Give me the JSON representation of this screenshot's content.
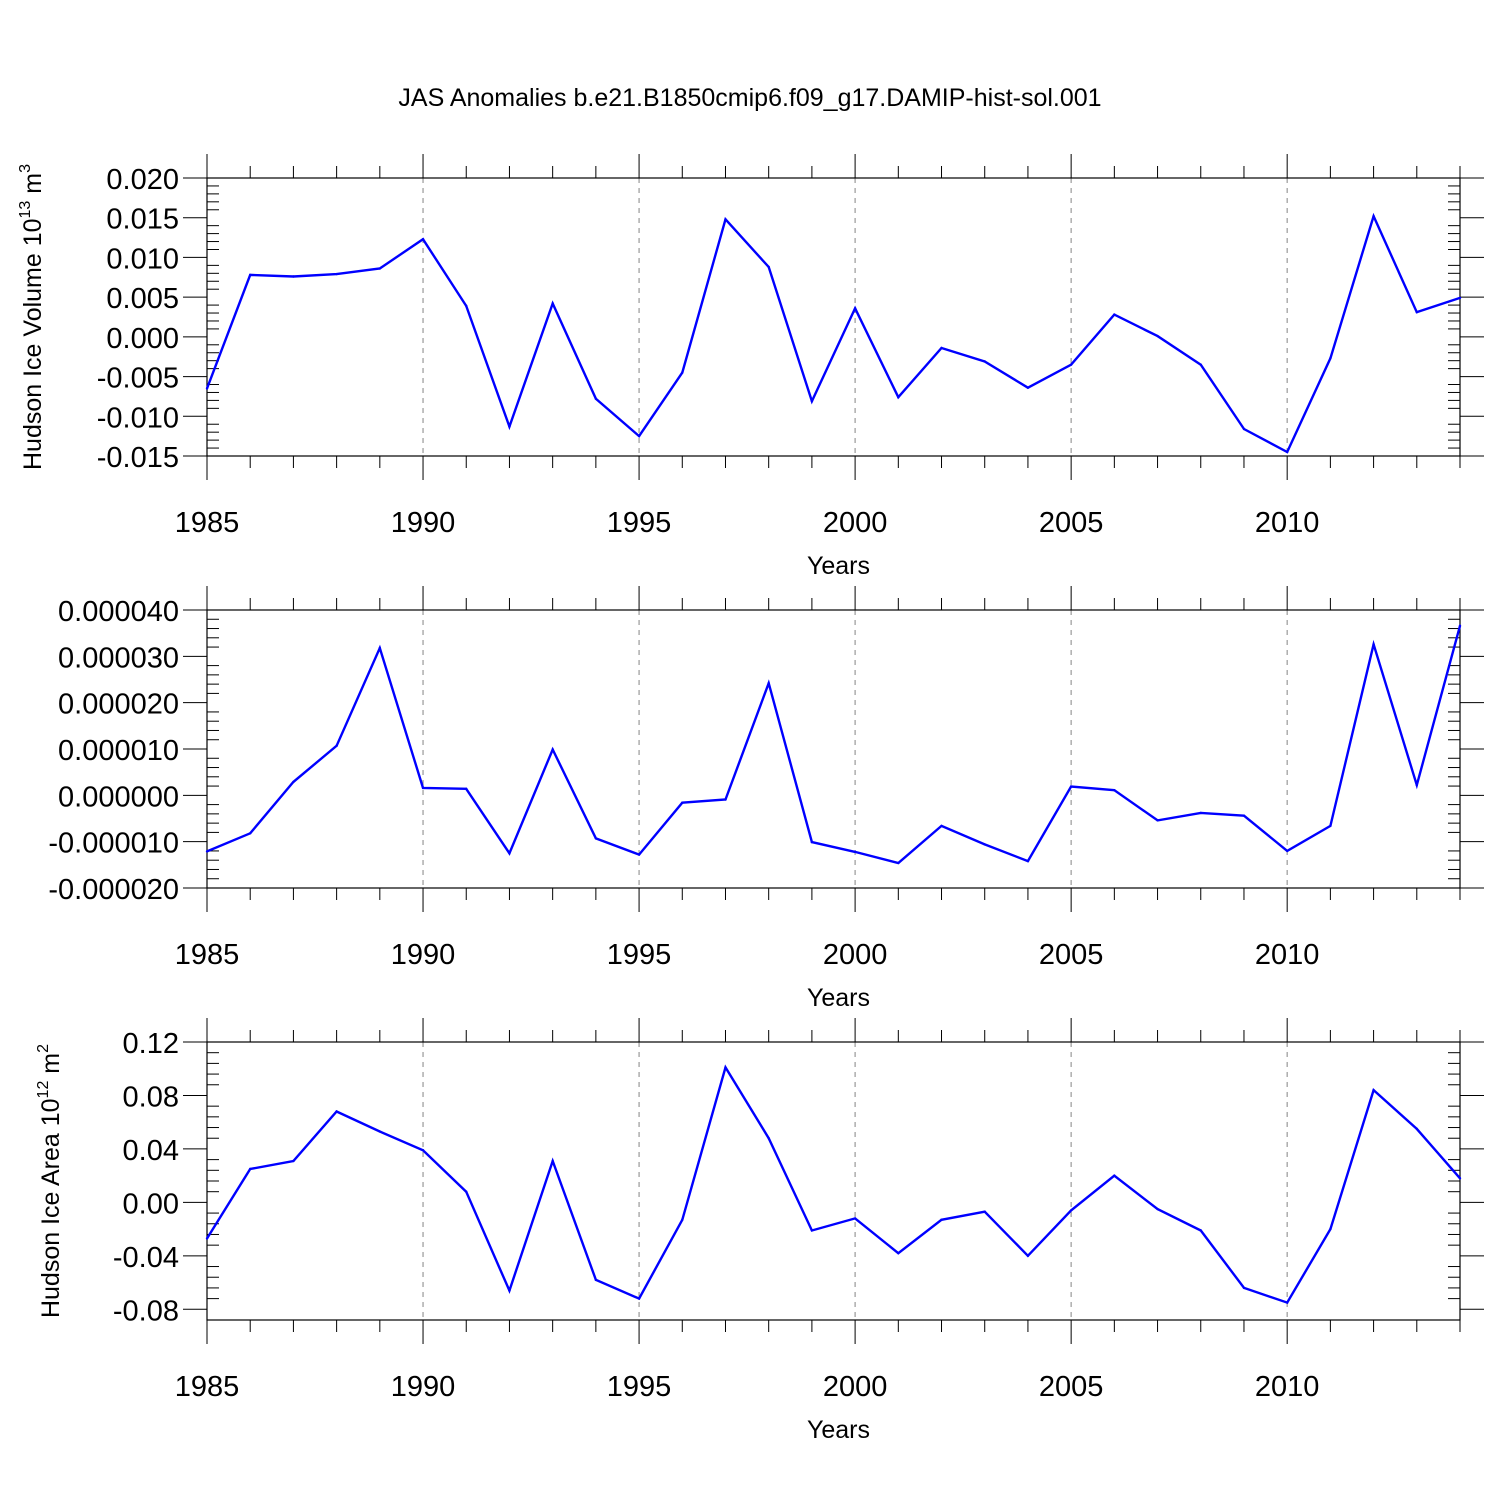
{
  "title": "JAS Anomalies b.e21.B1850cmip6.f09_g17.DAMIP-hist-sol.001",
  "colors": {
    "series": "#0000ff",
    "grid": "#999999",
    "axis": "#000000"
  },
  "chart_data": [
    {
      "type": "line",
      "xlabel": "Years",
      "ylabel": {
        "base": "Hudson Ice Volume 10",
        "exp": "13",
        "unit": " m",
        "unit_exp": "3"
      },
      "xlim": [
        1985,
        2014
      ],
      "ylim": [
        -0.015,
        0.02
      ],
      "xticks": [
        1985,
        1990,
        1995,
        2000,
        2005,
        2010
      ],
      "xtick_labels": [
        "1985",
        "1990",
        "1995",
        "2000",
        "2005",
        "2010"
      ],
      "yticks": [
        -0.015,
        -0.01,
        -0.005,
        0.0,
        0.005,
        0.01,
        0.015,
        0.02
      ],
      "ytick_labels": [
        "-0.015",
        "-0.010",
        "-0.005",
        "0.000",
        "0.005",
        "0.010",
        "0.015",
        "0.020"
      ],
      "grid_x": [
        1990,
        1995,
        2000,
        2005,
        2010
      ],
      "x": [
        1985,
        1986,
        1987,
        1988,
        1989,
        1990,
        1991,
        1992,
        1993,
        1994,
        1995,
        1996,
        1997,
        1998,
        1999,
        2000,
        2001,
        2002,
        2003,
        2004,
        2005,
        2006,
        2007,
        2008,
        2009,
        2010,
        2011,
        2012,
        2013,
        2014
      ],
      "values": [
        -0.0065,
        0.0078,
        0.0076,
        0.0079,
        0.0086,
        0.0123,
        0.0039,
        -0.0113,
        0.0042,
        -0.0078,
        -0.0125,
        -0.0045,
        0.0148,
        0.0088,
        -0.0081,
        0.0036,
        -0.0076,
        -0.0014,
        -0.0031,
        -0.0064,
        -0.0035,
        0.0028,
        0.0001,
        -0.0035,
        -0.0116,
        -0.0145,
        -0.0027,
        0.0152,
        0.0031,
        0.0049
      ]
    },
    {
      "type": "line",
      "xlabel": "Years",
      "ylabel": null,
      "xlim": [
        1985,
        2014
      ],
      "ylim": [
        -2e-05,
        4e-05
      ],
      "xticks": [
        1985,
        1990,
        1995,
        2000,
        2005,
        2010
      ],
      "xtick_labels": [
        "1985",
        "1990",
        "1995",
        "2000",
        "2005",
        "2010"
      ],
      "yticks": [
        -2e-05,
        -1e-05,
        0.0,
        1e-05,
        2e-05,
        3e-05,
        4e-05
      ],
      "ytick_labels": [
        "-0.000020",
        "-0.000010",
        "0.000000",
        "0.000010",
        "0.000020",
        "0.000030",
        "0.000040"
      ],
      "grid_x": [
        1990,
        1995,
        2000,
        2005,
        2010
      ],
      "x": [
        1985,
        1986,
        1987,
        1988,
        1989,
        1990,
        1991,
        1992,
        1993,
        1994,
        1995,
        1996,
        1997,
        1998,
        1999,
        2000,
        2001,
        2002,
        2003,
        2004,
        2005,
        2006,
        2007,
        2008,
        2009,
        2010,
        2011,
        2012,
        2013,
        2014
      ],
      "values": [
        -1.21e-05,
        -8.2e-06,
        2.9e-06,
        1.07e-05,
        3.18e-05,
        1.6e-06,
        1.4e-06,
        -1.25e-05,
        9.9e-06,
        -9.3e-06,
        -1.28e-05,
        -1.6e-06,
        -9e-07,
        2.42e-05,
        -1.01e-05,
        -1.22e-05,
        -1.46e-05,
        -6.6e-06,
        -1.06e-05,
        -1.42e-05,
        1.9e-06,
        1.1e-06,
        -5.4e-06,
        -3.8e-06,
        -4.4e-06,
        -1.2e-05,
        -6.6e-06,
        3.26e-05,
        2.2e-06,
        3.66e-05
      ]
    },
    {
      "type": "line",
      "xlabel": "Years",
      "ylabel": {
        "base": "Hudson Ice Area 10",
        "exp": "12",
        "unit": " m",
        "unit_exp": "2"
      },
      "xlim": [
        1985,
        2014
      ],
      "ylim": [
        -0.088,
        0.12
      ],
      "xticks": [
        1985,
        1990,
        1995,
        2000,
        2005,
        2010
      ],
      "xtick_labels": [
        "1985",
        "1990",
        "1995",
        "2000",
        "2005",
        "2010"
      ],
      "yticks": [
        -0.08,
        -0.04,
        0.0,
        0.04,
        0.08,
        0.12
      ],
      "ytick_labels": [
        "-0.08",
        "-0.04",
        "0.00",
        "0.04",
        "0.08",
        "0.12"
      ],
      "grid_x": [
        1990,
        1995,
        2000,
        2005,
        2010
      ],
      "x": [
        1985,
        1986,
        1987,
        1988,
        1989,
        1990,
        1991,
        1992,
        1993,
        1994,
        1995,
        1996,
        1997,
        1998,
        1999,
        2000,
        2001,
        2002,
        2003,
        2004,
        2005,
        2006,
        2007,
        2008,
        2009,
        2010,
        2011,
        2012,
        2013,
        2014
      ],
      "values": [
        -0.027,
        0.025,
        0.031,
        0.068,
        0.053,
        0.039,
        0.008,
        -0.066,
        0.031,
        -0.058,
        -0.072,
        -0.013,
        0.101,
        0.048,
        -0.021,
        -0.012,
        -0.038,
        -0.013,
        -0.007,
        -0.04,
        -0.006,
        0.02,
        -0.005,
        -0.021,
        -0.064,
        -0.075,
        -0.02,
        0.084,
        0.055,
        0.018
      ]
    }
  ]
}
